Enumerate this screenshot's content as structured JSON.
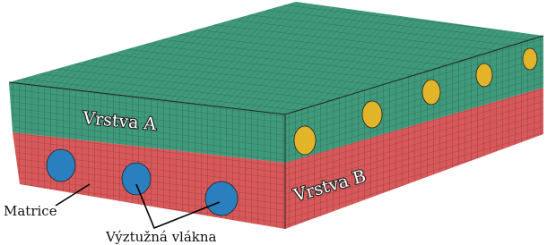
{
  "labels": {
    "layer_a": "Vrstva A",
    "layer_b": "Vrstva B",
    "matrix": "Matrice",
    "fibers": "Výztužná vlákna"
  }
}
